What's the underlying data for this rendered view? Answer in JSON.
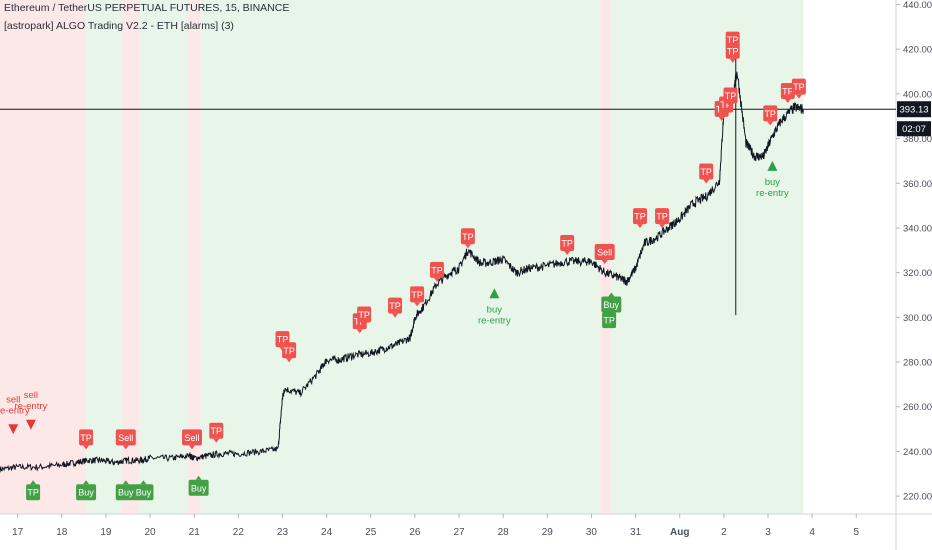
{
  "header": {
    "title": "Ethereum / TetherUS PERPETUAL FUTURES, 15, BINANCE",
    "indicator": "[astropark] ALGO Trading V2.2 - ETH [alarms] (3)"
  },
  "colors": {
    "price_line": "#131722",
    "bull_bg": "#e8f5e9",
    "bear_bg": "#fde8e8",
    "tp_sell_marker": "#ef5350",
    "buy_marker": "#43a047",
    "reentry_text_bull": "#2e9e4a",
    "reentry_text_bear": "#e53935",
    "axis_text": "#4a4e59",
    "price_label_bg": "#131722",
    "price_label_text": "#ffffff"
  },
  "chart_data": {
    "type": "line",
    "symbol": "ETHUSDT",
    "timeframe": "15",
    "ylim": [
      212,
      442
    ],
    "y_ticks": [
      220,
      240,
      260,
      280,
      300,
      320,
      340,
      360,
      380,
      400,
      420,
      440
    ],
    "y_tick_labels": [
      "220.00",
      "240.00",
      "260.00",
      "280.00",
      "300.00",
      "320.00",
      "340.00",
      "360.00",
      "380.00",
      "400.00",
      "420.00",
      "440.00"
    ],
    "x_ticks": [
      {
        "label": "17",
        "day": 17
      },
      {
        "label": "18",
        "day": 18
      },
      {
        "label": "19",
        "day": 19
      },
      {
        "label": "20",
        "day": 20
      },
      {
        "label": "21",
        "day": 21
      },
      {
        "label": "22",
        "day": 22
      },
      {
        "label": "23",
        "day": 23
      },
      {
        "label": "24",
        "day": 24
      },
      {
        "label": "25",
        "day": 25
      },
      {
        "label": "26",
        "day": 26
      },
      {
        "label": "27",
        "day": 27
      },
      {
        "label": "28",
        "day": 28
      },
      {
        "label": "29",
        "day": 29
      },
      {
        "label": "30",
        "day": 30
      },
      {
        "label": "31",
        "day": 31
      },
      {
        "label": "Aug",
        "day": 32
      },
      {
        "label": "2",
        "day": 33
      },
      {
        "label": "3",
        "day": 34
      },
      {
        "label": "4",
        "day": 35
      },
      {
        "label": "5",
        "day": 36
      }
    ],
    "xlim": [
      16.6,
      36.9
    ],
    "series": [
      {
        "x": [
          16.6,
          17.0,
          17.5,
          18.0,
          18.3,
          18.6,
          18.9,
          19.2,
          19.5,
          19.8,
          20.0,
          20.5,
          20.9,
          21.0,
          21.3,
          21.6,
          22.0,
          22.5,
          22.9,
          23.0,
          23.05,
          23.4,
          23.8,
          24.0,
          24.3,
          24.6,
          25.0,
          25.3,
          25.6,
          25.9,
          26.0,
          26.2,
          26.5,
          26.8,
          27.0,
          27.2,
          27.5,
          27.8,
          28.0,
          28.3,
          28.6,
          29.0,
          29.4,
          29.8,
          30.0,
          30.3,
          30.6,
          30.8,
          31.0,
          31.2,
          31.5,
          31.8,
          32.0,
          32.3,
          32.6,
          32.9,
          33.0,
          33.2,
          33.3,
          33.5,
          33.7,
          33.9,
          34.1,
          34.3,
          34.6,
          34.8
        ],
        "y": [
          232,
          233,
          233,
          234,
          235,
          236,
          236,
          235,
          236,
          236,
          237,
          237,
          238,
          237,
          238,
          239,
          239,
          240,
          241,
          264,
          268,
          266,
          275,
          281,
          281,
          283,
          284,
          286,
          288,
          291,
          300,
          305,
          315,
          320,
          322,
          330,
          324,
          325,
          326,
          320,
          322,
          323,
          325,
          325,
          325,
          320,
          318,
          316,
          322,
          333,
          336,
          341,
          344,
          351,
          354,
          361,
          392,
          399,
          410,
          378,
          372,
          372,
          381,
          388,
          394,
          393
        ]
      }
    ],
    "last_price": 393.13,
    "last_price_label": "393.13",
    "countdown": "02:07",
    "backgrounds": [
      {
        "from": 16.6,
        "to": 18.55,
        "trend": "bear"
      },
      {
        "from": 18.55,
        "to": 19.35,
        "trend": "bull"
      },
      {
        "from": 19.35,
        "to": 19.75,
        "trend": "bear"
      },
      {
        "from": 19.75,
        "to": 20.85,
        "trend": "bull"
      },
      {
        "from": 20.85,
        "to": 21.15,
        "trend": "bear"
      },
      {
        "from": 21.15,
        "to": 30.2,
        "trend": "bull"
      },
      {
        "from": 30.2,
        "to": 30.45,
        "trend": "bear"
      },
      {
        "from": 30.45,
        "to": 34.8,
        "trend": "bull"
      }
    ],
    "signals_top": [
      {
        "label": "TP",
        "x": 18.55,
        "y": 240
      },
      {
        "label": "Sell",
        "x": 19.45,
        "y": 240
      },
      {
        "label": "Sell",
        "x": 20.95,
        "y": 240
      },
      {
        "label": "TP",
        "x": 21.5,
        "y": 243
      },
      {
        "label": "TP",
        "x": 23.0,
        "y": 284
      },
      {
        "label": "TP",
        "x": 23.15,
        "y": 279
      },
      {
        "label": "TP",
        "x": 24.75,
        "y": 292
      },
      {
        "label": "TP",
        "x": 24.85,
        "y": 295
      },
      {
        "label": "TP",
        "x": 25.55,
        "y": 299
      },
      {
        "label": "TP",
        "x": 26.05,
        "y": 304
      },
      {
        "label": "TP",
        "x": 26.5,
        "y": 315
      },
      {
        "label": "TP",
        "x": 27.2,
        "y": 330
      },
      {
        "label": "TP",
        "x": 29.45,
        "y": 327
      },
      {
        "label": "Sell",
        "x": 30.3,
        "y": 323
      },
      {
        "label": "TP",
        "x": 31.1,
        "y": 339
      },
      {
        "label": "TP",
        "x": 31.6,
        "y": 339
      },
      {
        "label": "TP",
        "x": 32.6,
        "y": 359
      },
      {
        "label": "TP",
        "x": 32.95,
        "y": 387
      },
      {
        "label": "TP",
        "x": 33.05,
        "y": 389
      },
      {
        "label": "TP",
        "x": 33.2,
        "y": 418
      },
      {
        "label": "TP",
        "x": 33.2,
        "y": 413
      },
      {
        "label": "TP",
        "x": 33.15,
        "y": 393
      },
      {
        "label": "TP",
        "x": 34.05,
        "y": 385
      },
      {
        "label": "TP",
        "x": 34.45,
        "y": 395
      },
      {
        "label": "TP",
        "x": 34.7,
        "y": 397
      }
    ],
    "signals_bottom": [
      {
        "label": "TP",
        "x": 17.35,
        "y": 228
      },
      {
        "label": "Buy",
        "x": 18.55,
        "y": 228
      },
      {
        "label": "Buy",
        "x": 19.45,
        "y": 228
      },
      {
        "label": "Buy",
        "x": 19.85,
        "y": 228
      },
      {
        "label": "Buy",
        "x": 21.1,
        "y": 230
      },
      {
        "label": "TP",
        "x": 30.4,
        "y": 305
      },
      {
        "label": "Buy",
        "x": 30.45,
        "y": 312
      }
    ],
    "reentries": [
      {
        "direction": "sell",
        "label_line1": "sell",
        "label_line2": "re-entry",
        "x": 16.9,
        "y": 262
      },
      {
        "direction": "sell",
        "label_line1": "sell",
        "label_line2": "re-entry",
        "x": 17.3,
        "y": 264
      },
      {
        "direction": "buy",
        "label_line1": "buy",
        "label_line2": "re-entry",
        "x": 27.8,
        "y": 313
      },
      {
        "direction": "buy",
        "label_line1": "buy",
        "label_line2": "re-entry",
        "x": 34.1,
        "y": 370
      }
    ],
    "wick": {
      "x": 33.27,
      "high": 418,
      "low": 301
    }
  }
}
